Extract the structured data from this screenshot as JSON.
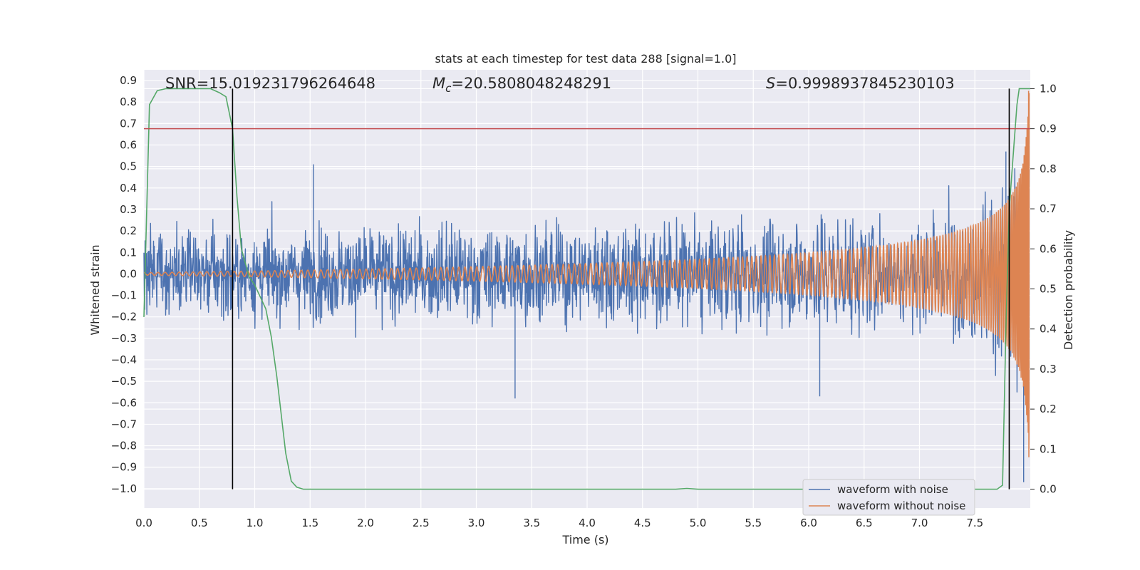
{
  "chart_data": {
    "type": "line",
    "title": "stats at each timestep for test data 288 [signal=1.0]",
    "xlabel": "Time (s)",
    "ylabel": "Whitened strain",
    "ylabel_right": "Detection probability",
    "xlim": [
      0.0,
      8.0
    ],
    "ylim": [
      -1.09,
      0.95
    ],
    "ylim_right": [
      -0.047,
      1.047
    ],
    "x_ticks": [
      "0.0",
      "0.5",
      "1.0",
      "1.5",
      "2.0",
      "2.5",
      "3.0",
      "3.5",
      "4.0",
      "4.5",
      "5.0",
      "5.5",
      "6.0",
      "6.5",
      "7.0",
      "7.5"
    ],
    "y_ticks": [
      "0.9",
      "0.8",
      "0.7",
      "0.6",
      "0.5",
      "0.4",
      "0.3",
      "0.2",
      "0.1",
      "0.0",
      "−0.1",
      "−0.2",
      "−0.3",
      "−0.4",
      "−0.5",
      "−0.6",
      "−0.7",
      "−0.8",
      "−0.9",
      "−1.0"
    ],
    "y_right_ticks": [
      "1.0",
      "0.9",
      "0.8",
      "0.7",
      "0.6",
      "0.5",
      "0.4",
      "0.3",
      "0.2",
      "0.1",
      "0.0"
    ],
    "grid": true,
    "legend_position": "lower-right",
    "annotations": {
      "snr": "SNR=15.019231796264648",
      "mc_symbol": "M",
      "mc_sub": "c",
      "mc_value": "=20.5808048248291",
      "s_symbol": "S",
      "s_value": "=0.9998937845230103"
    },
    "threshold_prob": 0.9,
    "vlines_time": [
      0.8,
      7.81
    ],
    "series": [
      {
        "name": "waveform with noise",
        "color": "#4c72b0",
        "style": "noise",
        "noise_envelope": [
          [
            0.0,
            0.24
          ],
          [
            1.0,
            0.25
          ],
          [
            3.0,
            0.27
          ],
          [
            6.0,
            0.28
          ],
          [
            7.4,
            0.3
          ],
          [
            7.7,
            0.38
          ],
          [
            7.9,
            0.55
          ],
          [
            7.99,
            0.7
          ]
        ],
        "peaks": [
          [
            1.53,
            0.51
          ],
          [
            3.35,
            -0.58
          ],
          [
            6.1,
            -0.57
          ],
          [
            7.78,
            0.57
          ],
          [
            7.94,
            -0.97
          ]
        ]
      },
      {
        "name": "waveform without noise",
        "color": "#dd8452",
        "style": "chirp",
        "chirp": {
          "t_coalesce": 8.0,
          "cycles": 200,
          "amp_early": 0.006,
          "amp_peak": 0.92,
          "t_end": 7.99
        }
      },
      {
        "name": "",
        "color": "#55a868",
        "axis": "right",
        "x": [
          0.0,
          0.05,
          0.12,
          0.2,
          0.3,
          0.4,
          0.5,
          0.6,
          0.68,
          0.74,
          0.8,
          0.84,
          0.88,
          0.95,
          1.0,
          1.1,
          1.15,
          1.2,
          1.28,
          1.33,
          1.38,
          1.44,
          1.5,
          4.8,
          4.9,
          5.0,
          7.7,
          7.75,
          7.78,
          7.81,
          7.85,
          7.88,
          7.9,
          7.95,
          8.0
        ],
        "y": [
          0.43,
          0.96,
          0.995,
          1.0,
          1.0,
          1.0,
          1.0,
          1.0,
          0.99,
          0.98,
          0.9,
          0.73,
          0.6,
          0.53,
          0.51,
          0.45,
          0.38,
          0.28,
          0.09,
          0.02,
          0.005,
          0.0,
          0.0,
          0.0,
          0.002,
          0.0,
          0.0,
          0.01,
          0.4,
          0.7,
          0.85,
          0.96,
          1.0,
          1.0,
          1.0
        ]
      }
    ]
  }
}
